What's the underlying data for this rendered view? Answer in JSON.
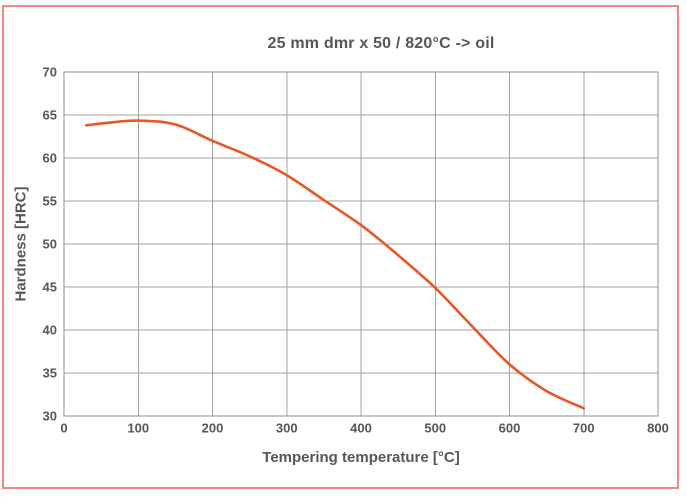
{
  "window": {
    "background": "#ffffff",
    "border_color": "#f4867c"
  },
  "chart_data": {
    "type": "line",
    "title": "25 mm dmr x 50 / 820°C -> oil",
    "xlabel": "Tempering temperature [°C]",
    "ylabel": "Hardness [HRC]",
    "xlim": [
      0,
      800
    ],
    "ylim": [
      30,
      70
    ],
    "xticks": [
      0,
      100,
      200,
      300,
      400,
      500,
      600,
      700,
      800
    ],
    "yticks": [
      30,
      35,
      40,
      45,
      50,
      55,
      60,
      65,
      70
    ],
    "grid": true,
    "legend": false,
    "series": [
      {
        "color": "#e85826",
        "points": [
          [
            30,
            63.8
          ],
          [
            60,
            64.1
          ],
          [
            100,
            64.35
          ],
          [
            150,
            63.9
          ],
          [
            200,
            62.0
          ],
          [
            250,
            60.2
          ],
          [
            300,
            58.0
          ],
          [
            350,
            55.1
          ],
          [
            400,
            52.2
          ],
          [
            450,
            48.7
          ],
          [
            500,
            44.9
          ],
          [
            550,
            40.4
          ],
          [
            600,
            36.0
          ],
          [
            650,
            32.9
          ],
          [
            700,
            30.9
          ]
        ]
      }
    ],
    "colors": {
      "grid": "#a2a2a2",
      "spine": "#8f8f8f",
      "text": "#54585a"
    }
  }
}
